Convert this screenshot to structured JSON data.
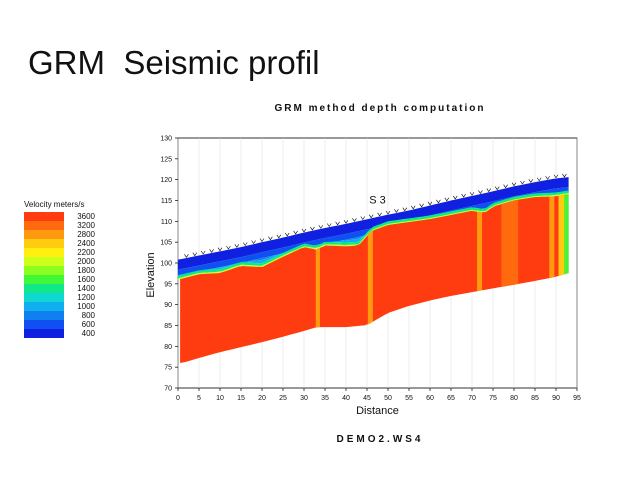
{
  "slide": {
    "title": "GRM  Seismic profil"
  },
  "chart_data": {
    "type": "heatmap",
    "title": "GRM method depth computation",
    "footer": "DEMO2.WS4",
    "xlabel": "Distance",
    "ylabel": "Elevation",
    "xlim": [
      0,
      95
    ],
    "ylim": [
      70,
      130
    ],
    "x_ticks": [
      0,
      5,
      10,
      15,
      20,
      25,
      30,
      35,
      40,
      45,
      50,
      55,
      60,
      65,
      70,
      75,
      80,
      85,
      90,
      95
    ],
    "y_ticks": [
      70,
      75,
      80,
      85,
      90,
      95,
      100,
      105,
      110,
      115,
      120,
      125,
      130
    ],
    "annotation": {
      "text": "S 3",
      "x": 47.5,
      "y": 115
    },
    "legend": {
      "title": "Velocity meters/s",
      "entries": [
        {
          "value": "3600",
          "color": "#ff3c0f"
        },
        {
          "value": "3200",
          "color": "#ff6a0f"
        },
        {
          "value": "2800",
          "color": "#ff9910"
        },
        {
          "value": "2400",
          "color": "#ffcc10"
        },
        {
          "value": "2200",
          "color": "#fff010"
        },
        {
          "value": "2000",
          "color": "#ccff1a"
        },
        {
          "value": "1800",
          "color": "#8cff20"
        },
        {
          "value": "1600",
          "color": "#40f838"
        },
        {
          "value": "1400",
          "color": "#10e888"
        },
        {
          "value": "1200",
          "color": "#10d8d0"
        },
        {
          "value": "1000",
          "color": "#10b0f0"
        },
        {
          "value": "800",
          "color": "#1080f0"
        },
        {
          "value": "600",
          "color": "#1050f0"
        },
        {
          "value": "400",
          "color": "#1020e0"
        }
      ]
    },
    "surface": {
      "x": [
        5,
        10,
        15,
        20,
        25,
        30,
        35,
        40,
        45,
        50,
        55,
        60,
        65,
        70,
        75,
        80,
        85,
        90,
        93
      ],
      "y": [
        101,
        102,
        103,
        104.2,
        105.3,
        106.5,
        107.6,
        108.6,
        109.7,
        110.8,
        111.8,
        113,
        114.2,
        115.3,
        116.4,
        117.6,
        118.6,
        119.5,
        119.8
      ]
    },
    "refractor_top": {
      "x": [
        0,
        5,
        10,
        15,
        20,
        25,
        30,
        33,
        35,
        40,
        43,
        46,
        50,
        55,
        60,
        65,
        70,
        73,
        75,
        80,
        85,
        90,
        93
      ],
      "y": [
        96,
        97.3,
        97.6,
        99.3,
        99,
        101.5,
        103.8,
        103.2,
        104.2,
        104,
        104.2,
        107.6,
        109.1,
        109.8,
        110.5,
        111.5,
        112.5,
        112,
        113.5,
        115,
        115.8,
        116,
        116.5
      ]
    },
    "refractor_bottom": {
      "x": [
        1,
        5,
        10,
        15,
        20,
        25,
        30,
        33,
        40,
        45,
        50,
        55,
        60,
        65,
        70,
        75,
        80,
        85,
        90,
        93
      ],
      "y": [
        76,
        77.2,
        78.6,
        79.8,
        81,
        82.3,
        83.7,
        84.6,
        84.6,
        85.1,
        88,
        89.7,
        91,
        92.1,
        93,
        93.9,
        94.8,
        95.7,
        96.7,
        97.6
      ]
    },
    "low_velocity_zones": [
      {
        "x": [
          32.8,
          33.8
        ],
        "color": "#ff9910"
      },
      {
        "x": [
          45.2,
          46.4
        ],
        "color": "#ff9910"
      },
      {
        "x": [
          71.2,
          72.4
        ],
        "color": "#ff9910"
      },
      {
        "x": [
          77,
          81
        ],
        "color": "#ff6a0f"
      },
      {
        "x": [
          88.4,
          89.6
        ],
        "color": "#ff9910"
      },
      {
        "x": [
          90.6,
          92
        ],
        "color": "#ffcc10"
      },
      {
        "x": [
          92,
          93
        ],
        "color": "#40f838"
      }
    ]
  }
}
